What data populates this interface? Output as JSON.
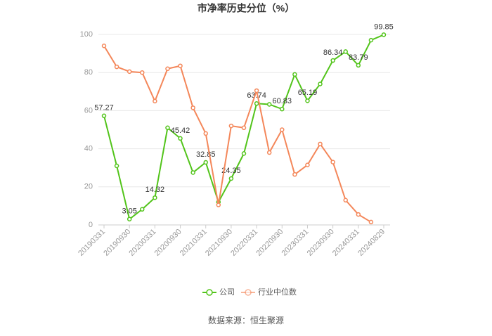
{
  "chart_data": {
    "type": "line",
    "title": "市净率历史分位（%）",
    "categories": [
      "20190331",
      null,
      "20190930",
      null,
      "20200331",
      null,
      "20200930",
      null,
      "20210331",
      null,
      "20210930",
      null,
      "20220331",
      null,
      "20220930",
      null,
      "20230331",
      null,
      "20230930",
      null,
      "20240331",
      null,
      "20240829"
    ],
    "series": [
      {
        "name": "公司",
        "color": "#52c41a",
        "values": [
          57.27,
          31,
          3.05,
          8.2,
          14.32,
          51,
          45.42,
          27.5,
          32.85,
          12,
          24.35,
          37.5,
          63.74,
          63.3,
          60.83,
          79,
          65.19,
          74,
          86.34,
          91,
          83.79,
          97,
          99.85
        ],
        "value_labels": [
          "57.27",
          null,
          "3.05",
          null,
          "14.32",
          null,
          "45.42",
          null,
          "32.85",
          null,
          "24.35",
          null,
          "63.74",
          null,
          "60.83",
          null,
          "65.19",
          null,
          "86.34",
          null,
          "83.79",
          null,
          "99.85"
        ]
      },
      {
        "name": "行业中位数",
        "color": "#f4875a",
        "values": [
          94,
          83,
          80.5,
          80,
          65,
          82,
          83.5,
          61.5,
          48,
          10.5,
          52,
          51,
          70.5,
          38,
          50,
          26.5,
          31.5,
          42.5,
          33,
          13,
          5.5,
          1.5,
          null
        ]
      }
    ],
    "ylim": [
      0,
      100
    ],
    "yticks": [
      0,
      20,
      40,
      60,
      80,
      100
    ],
    "grid": true,
    "source": "数据来源：恒生聚源"
  }
}
